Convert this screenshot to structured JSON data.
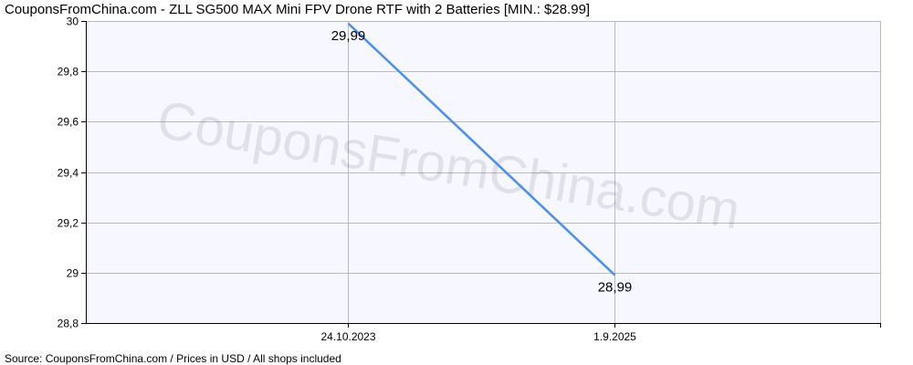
{
  "chart_data": {
    "type": "line",
    "title": "CouponsFromChina.com - ZLL SG500 MAX Mini FPV Drone RTF with 2 Batteries [MIN.: $28.99]",
    "categories": [
      "24.10.2023",
      "1.9.2025"
    ],
    "series": [
      {
        "values": [
          29.99,
          28.99
        ],
        "labels": [
          "29,99",
          "28,99"
        ]
      }
    ],
    "ylim": [
      28.8,
      30
    ],
    "yticks": [
      {
        "value": 30,
        "label": "30"
      },
      {
        "value": 29.8,
        "label": "29,8"
      },
      {
        "value": 29.6,
        "label": "29,6"
      },
      {
        "value": 29.4,
        "label": "29,4"
      },
      {
        "value": 29.2,
        "label": "29,2"
      },
      {
        "value": 29,
        "label": "29"
      },
      {
        "value": 28.8,
        "label": "28,8"
      }
    ],
    "grid": true,
    "line_color": "#4a8fe8",
    "plot_background": "#f7f7ff",
    "grid_color": "#bbbbbb",
    "watermark": "CouponsFromChina.com"
  },
  "footer": {
    "source": "Source: CouponsFromChina.com / Prices in USD / All shops included"
  }
}
